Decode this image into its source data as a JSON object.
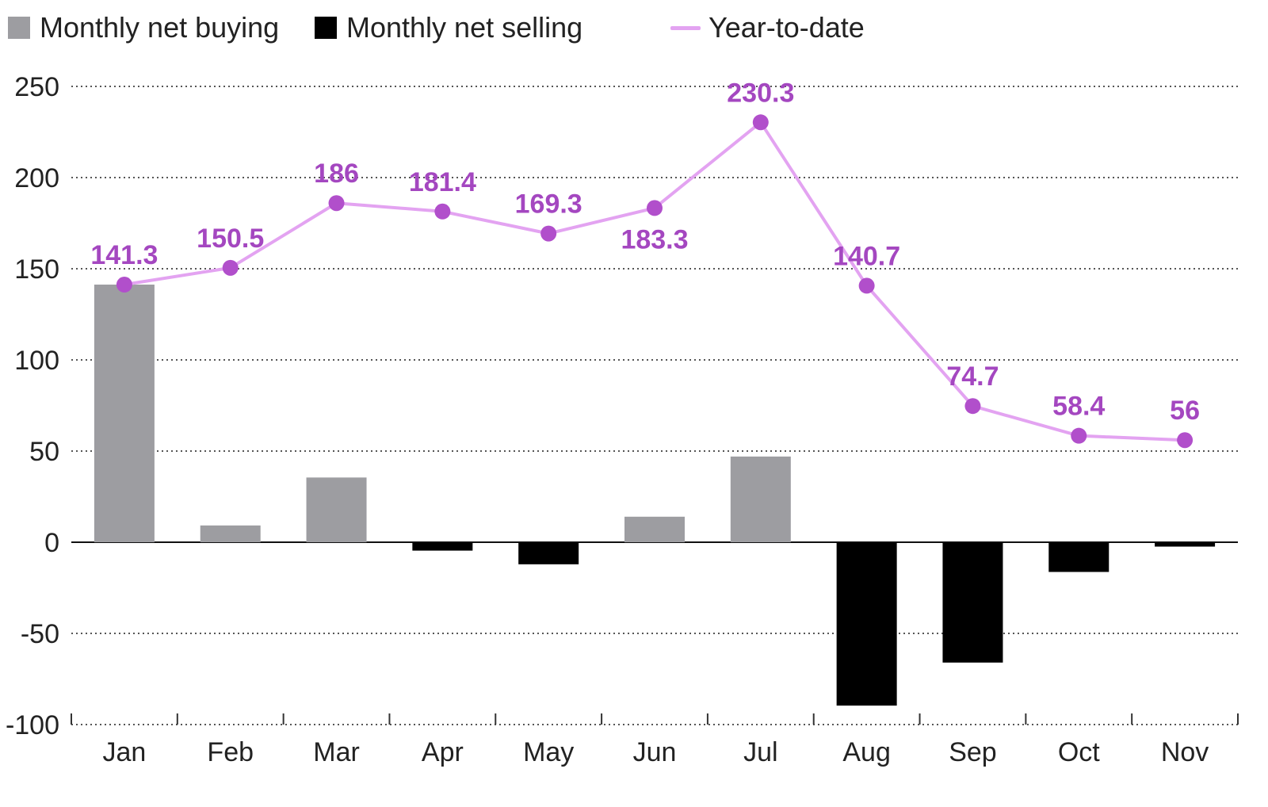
{
  "legend": {
    "buying_label": "Monthly net buying",
    "selling_label": "Monthly net selling",
    "ytd_label": "Year-to-date"
  },
  "colors": {
    "buying": "#9d9da1",
    "selling": "#000000",
    "ytd_line": "#e3a3f1",
    "ytd_marker": "#b14fcb",
    "ytd_label": "#a447c0"
  },
  "chart_data": {
    "type": "bar",
    "categories": [
      "Jan",
      "Feb",
      "Mar",
      "Apr",
      "May",
      "Jun",
      "Jul",
      "Aug",
      "Sep",
      "Oct",
      "Nov"
    ],
    "series": [
      {
        "name": "Monthly net buying / selling",
        "values": [
          141.3,
          9.2,
          35.5,
          -4.6,
          -12.1,
          14.0,
          47.0,
          -89.6,
          -66.0,
          -16.3,
          -2.4
        ]
      },
      {
        "name": "Year-to-date",
        "type": "line",
        "values": [
          141.3,
          150.5,
          186,
          181.4,
          169.3,
          183.3,
          230.3,
          140.7,
          74.7,
          58.4,
          56
        ]
      }
    ],
    "data_labels": [
      "141.3",
      "150.5",
      "186",
      "181.4",
      "169.3",
      "183.3",
      "230.3",
      "140.7",
      "74.7",
      "58.4",
      "56"
    ],
    "yticks": [
      "250",
      "200",
      "150",
      "100",
      "50",
      "0",
      "-50",
      "-100"
    ],
    "ylim": [
      -100,
      250
    ],
    "grid": true,
    "legend_position": "top-left",
    "title": "",
    "xlabel": "",
    "ylabel": ""
  }
}
